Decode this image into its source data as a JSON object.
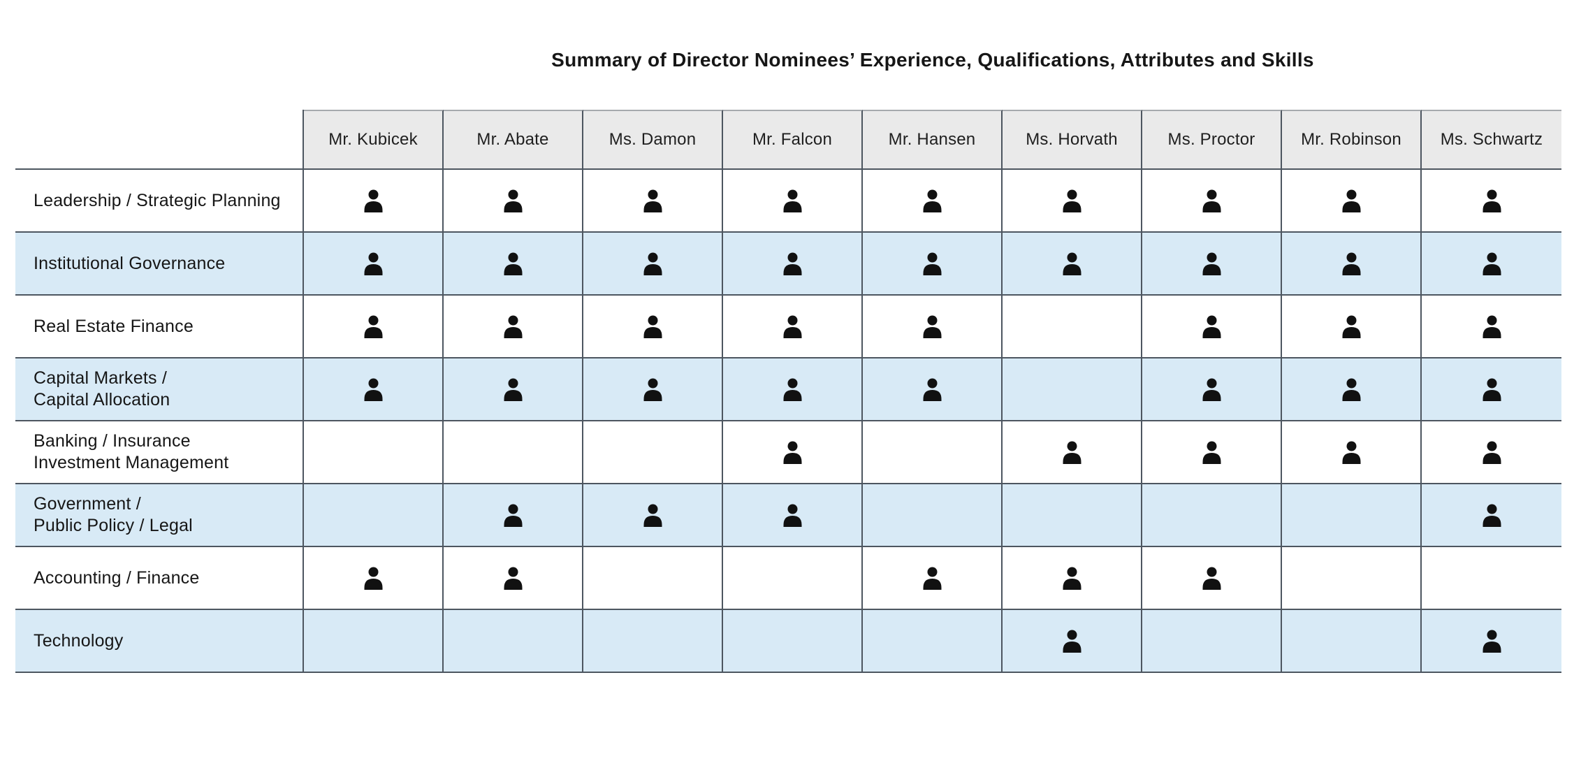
{
  "title": "Summary of Director Nominees’ Experience, Qualifications, Attributes and Skills",
  "directors": [
    "Mr. Kubicek",
    "Mr. Abate",
    "Ms. Damon",
    "Mr. Falcon",
    "Mr. Hansen",
    "Ms. Horvath",
    "Ms. Proctor",
    "Mr. Robinson",
    "Ms. Schwartz"
  ],
  "skills": [
    {
      "label_lines": [
        "Leadership / Strategic Planning"
      ],
      "marks": [
        1,
        1,
        1,
        1,
        1,
        1,
        1,
        1,
        1
      ]
    },
    {
      "label_lines": [
        "Institutional Governance"
      ],
      "marks": [
        1,
        1,
        1,
        1,
        1,
        1,
        1,
        1,
        1
      ]
    },
    {
      "label_lines": [
        "Real Estate Finance"
      ],
      "marks": [
        1,
        1,
        1,
        1,
        1,
        0,
        1,
        1,
        1
      ]
    },
    {
      "label_lines": [
        "Capital Markets /",
        "Capital Allocation"
      ],
      "marks": [
        1,
        1,
        1,
        1,
        1,
        0,
        1,
        1,
        1
      ]
    },
    {
      "label_lines": [
        "Banking / Insurance",
        "Investment Management"
      ],
      "marks": [
        0,
        0,
        0,
        1,
        0,
        1,
        1,
        1,
        1
      ]
    },
    {
      "label_lines": [
        "Government /",
        "Public Policy / Legal"
      ],
      "marks": [
        0,
        1,
        1,
        1,
        0,
        0,
        0,
        0,
        1
      ]
    },
    {
      "label_lines": [
        "Accounting / Finance"
      ],
      "marks": [
        1,
        1,
        0,
        0,
        1,
        1,
        1,
        0,
        0
      ]
    },
    {
      "label_lines": [
        "Technology"
      ],
      "marks": [
        0,
        0,
        0,
        0,
        0,
        1,
        0,
        0,
        1
      ]
    }
  ],
  "mark_icon": "person-icon",
  "colors": {
    "row_alt_blue": "#d8eaf6",
    "header_gray": "#eaeaea",
    "grid_line_dark": "#4d5660",
    "header_top_line": "#a6a9ad",
    "icon_black": "#111111",
    "text": "#161616"
  }
}
